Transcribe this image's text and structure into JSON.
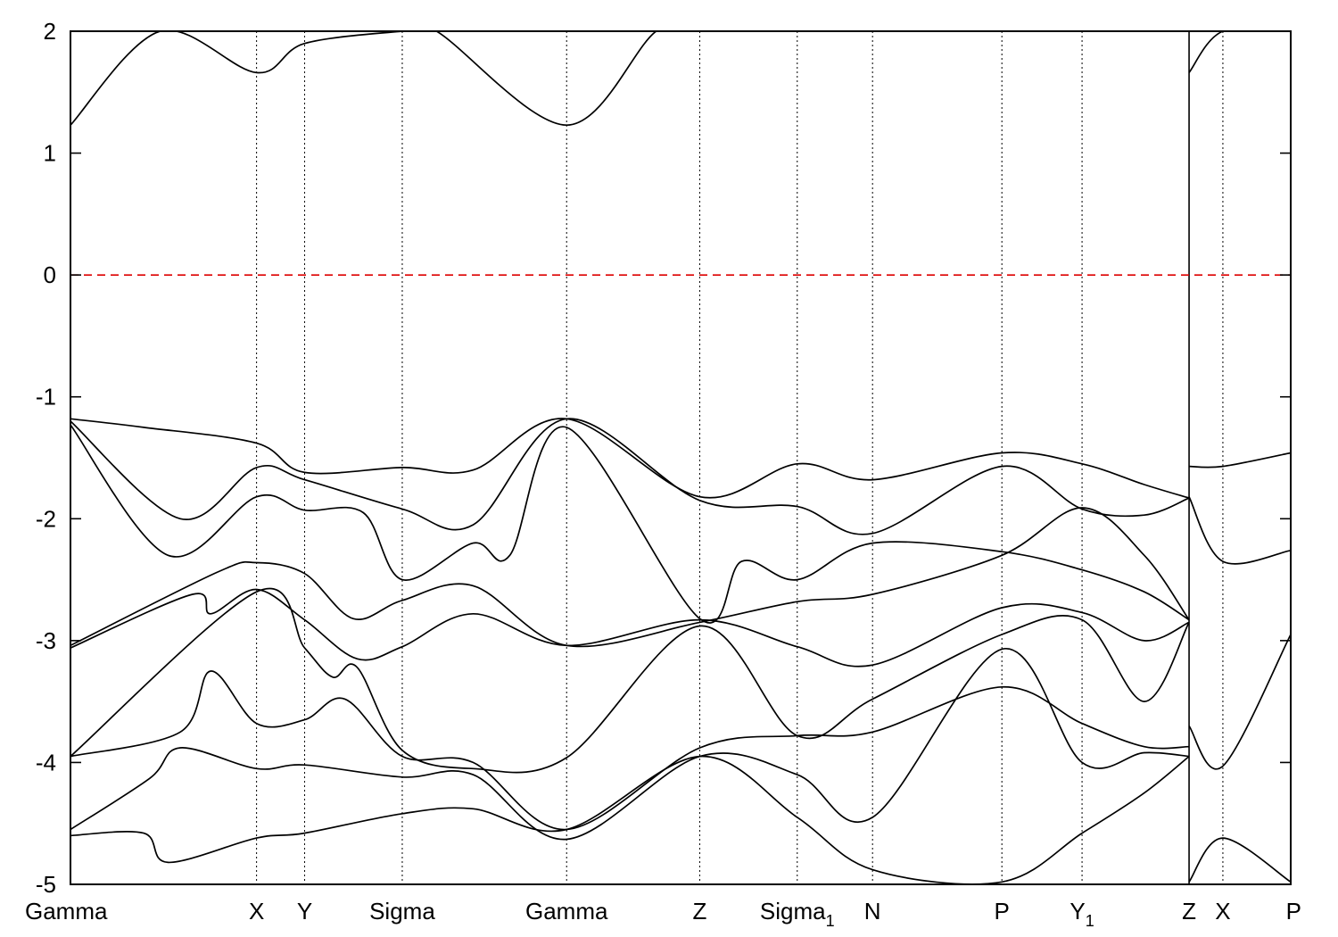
{
  "chart_data": {
    "type": "line",
    "title": "",
    "xlabel": "",
    "ylabel": "",
    "ylim": [
      -5,
      2
    ],
    "yticks": [
      2,
      1,
      0,
      -1,
      -2,
      -3,
      -4,
      -5
    ],
    "fermi_level": {
      "y": 0,
      "color": "#dd0000",
      "style": "dashed"
    },
    "kpath": [
      {
        "label": "Gamma",
        "sub": "",
        "x": 0.0
      },
      {
        "label": "X",
        "sub": "",
        "x": 0.1525
      },
      {
        "label": "Y",
        "sub": "",
        "x": 0.1919
      },
      {
        "label": "Sigma",
        "sub": "",
        "x": 0.2719
      },
      {
        "label": "Gamma",
        "sub": "",
        "x": 0.4066
      },
      {
        "label": "Z",
        "sub": "",
        "x": 0.5157
      },
      {
        "label": "Sigma",
        "sub": "1",
        "x": 0.5956
      },
      {
        "label": "N",
        "sub": "",
        "x": 0.6573
      },
      {
        "label": "P",
        "sub": "",
        "x": 0.7633
      },
      {
        "label": "Y",
        "sub": "",
        "sub2": "1",
        "x": 0.829
      },
      {
        "label": "Z",
        "sub": "",
        "x": 0.9167
      },
      {
        "label": "X",
        "sub": "",
        "x": 0.9444
      },
      {
        "label": "P",
        "sub": "",
        "x": 1.0
      }
    ],
    "segment_break_x": 0.9167,
    "series": [
      {
        "x": [
          0.0,
          0.06,
          0.1525,
          0.1919,
          0.2719,
          0.33,
          0.4066,
          0.5157,
          0.5956,
          0.6573,
          0.7633,
          0.829,
          0.88,
          0.9167
        ],
        "y": [
          -1.18,
          -1.25,
          -1.38,
          -1.62,
          -1.58,
          -1.6,
          -1.18,
          -1.82,
          -1.55,
          -1.68,
          -1.46,
          -1.55,
          -1.72,
          -1.83
        ]
      },
      {
        "x": [
          0.0,
          0.09,
          0.1525,
          0.1919,
          0.2719,
          0.33,
          0.4066,
          0.5157,
          0.5956,
          0.6573,
          0.7633,
          0.829,
          0.88,
          0.9167
        ],
        "y": [
          -1.2,
          -2.0,
          -1.58,
          -1.68,
          -1.92,
          -2.05,
          -1.18,
          -1.85,
          -1.9,
          -2.12,
          -1.57,
          -1.92,
          -1.97,
          -1.83
        ]
      },
      {
        "x": [
          0.0,
          0.08,
          0.1525,
          0.1919,
          0.24,
          0.2719,
          0.33,
          0.36,
          0.4066,
          0.5157,
          0.55,
          0.5956,
          0.6573,
          0.7633,
          0.829,
          0.88,
          0.9167
        ],
        "y": [
          -1.23,
          -2.3,
          -1.82,
          -1.93,
          -1.95,
          -2.5,
          -2.2,
          -2.3,
          -1.25,
          -2.82,
          -2.35,
          -2.5,
          -2.2,
          -2.27,
          -2.42,
          -2.6,
          -2.83
        ]
      },
      {
        "x": [
          0.0,
          0.12,
          0.1525,
          0.1919,
          0.2319,
          0.2719,
          0.33,
          0.4066,
          0.5157,
          0.5956,
          0.6573,
          0.7633,
          0.829,
          0.88,
          0.9167
        ],
        "y": [
          -3.04,
          -2.44,
          -2.36,
          -2.45,
          -2.82,
          -2.67,
          -2.55,
          -3.04,
          -2.85,
          -2.68,
          -2.62,
          -2.3,
          -1.91,
          -2.3,
          -2.83
        ]
      },
      {
        "x": [
          0.0,
          0.1,
          0.115,
          0.1525,
          0.1919,
          0.235,
          0.2719,
          0.33,
          0.4066,
          0.5157,
          0.5956,
          0.6573,
          0.7633,
          0.829,
          0.88,
          0.9167
        ],
        "y": [
          -3.06,
          -2.62,
          -2.78,
          -2.58,
          -2.83,
          -3.15,
          -3.05,
          -2.78,
          -3.04,
          -2.83,
          -3.05,
          -3.2,
          -2.73,
          -2.77,
          -3.0,
          -2.85
        ]
      },
      {
        "x": [
          0.0,
          0.1525,
          0.1919,
          0.215,
          0.235,
          0.2719,
          0.33,
          0.4066,
          0.5157,
          0.5956,
          0.6573,
          0.7633,
          0.829,
          0.88,
          0.9167
        ],
        "y": [
          -3.95,
          -2.6,
          -3.06,
          -3.3,
          -3.22,
          -3.9,
          -4.05,
          -3.96,
          -2.88,
          -3.78,
          -3.48,
          -2.95,
          -2.83,
          -3.5,
          -2.85
        ]
      },
      {
        "x": [
          0.0,
          0.09,
          0.115,
          0.1525,
          0.1919,
          0.225,
          0.2719,
          0.33,
          0.4066,
          0.5157,
          0.5956,
          0.6573,
          0.7633,
          0.829,
          0.88,
          0.9167
        ],
        "y": [
          -3.95,
          -3.75,
          -3.25,
          -3.68,
          -3.65,
          -3.48,
          -3.95,
          -4.0,
          -4.55,
          -3.88,
          -3.78,
          -3.75,
          -3.38,
          -3.68,
          -3.87,
          -3.87
        ]
      },
      {
        "x": [
          0.0,
          0.065,
          0.09,
          0.1525,
          0.1919,
          0.2719,
          0.33,
          0.4066,
          0.5157,
          0.5956,
          0.6573,
          0.7633,
          0.829,
          0.88,
          0.9167
        ],
        "y": [
          -4.55,
          -4.13,
          -3.88,
          -4.05,
          -4.02,
          -4.12,
          -4.1,
          -4.63,
          -3.95,
          -4.1,
          -4.45,
          -3.07,
          -4.0,
          -3.92,
          -3.95
        ]
      },
      {
        "x": [
          0.0,
          0.06,
          0.08,
          0.1525,
          0.1919,
          0.2719,
          0.33,
          0.4066,
          0.5157,
          0.5956,
          0.6573,
          0.7633,
          0.829,
          0.88,
          0.9167
        ],
        "y": [
          -4.6,
          -4.58,
          -4.82,
          -4.62,
          -4.58,
          -4.42,
          -4.38,
          -4.55,
          -3.95,
          -4.45,
          -4.88,
          -4.98,
          -4.58,
          -4.25,
          -3.95
        ]
      },
      {
        "x": [
          0.0,
          0.0735,
          0.1525,
          0.1919,
          0.2719,
          0.3,
          0.4066,
          0.48,
          0.5157
        ],
        "y": [
          1.23,
          2.0,
          1.66,
          1.9,
          2.0,
          2.0,
          1.23,
          2.0,
          2.0
        ]
      },
      {
        "x": [
          0.9167,
          0.9444,
          1.0
        ],
        "y": [
          -1.57,
          -1.57,
          -1.46
        ]
      },
      {
        "x": [
          0.9167,
          0.9444,
          1.0
        ],
        "y": [
          -1.82,
          -2.35,
          -2.26
        ]
      },
      {
        "x": [
          0.9167,
          0.9444,
          1.0
        ],
        "y": [
          -3.7,
          -4.03,
          -2.95
        ]
      },
      {
        "x": [
          0.9167,
          0.9444,
          1.0
        ],
        "y": [
          1.66,
          2.0,
          2.0
        ]
      },
      {
        "x": [
          0.9167,
          0.9444,
          1.0
        ],
        "y": [
          -4.98,
          -4.62,
          -4.98
        ]
      }
    ]
  }
}
